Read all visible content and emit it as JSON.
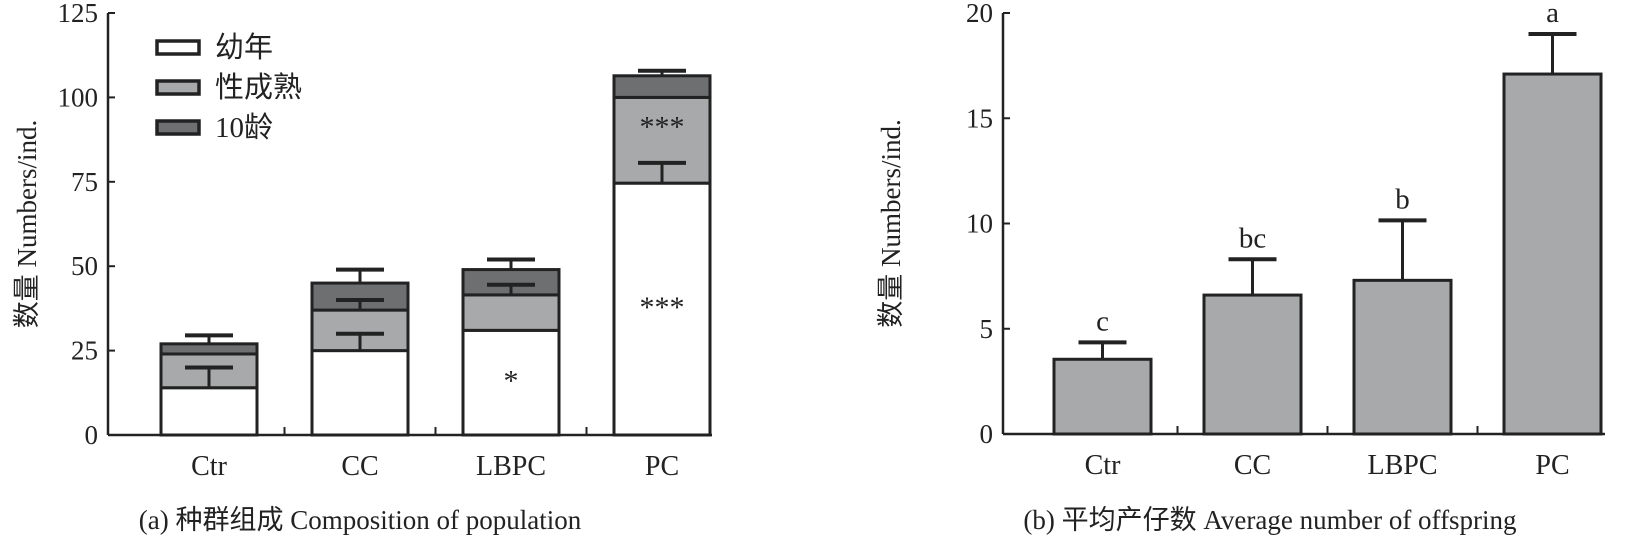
{
  "chart_data": [
    {
      "type": "bar",
      "stacked": true,
      "title": "(a) 种群组成 Composition of population",
      "xlabel": "",
      "ylabel": "数量 Numbers/ind.",
      "ylim": [
        0,
        125
      ],
      "yticks": [
        0,
        25,
        50,
        75,
        100,
        125
      ],
      "categories": [
        "Ctr",
        "CC",
        "LBPC",
        "PC"
      ],
      "legend_position": "top-left",
      "series": [
        {
          "name": "幼年",
          "color": "#ffffff",
          "values": [
            14,
            25,
            31,
            74.6
          ],
          "errors": [
            6,
            5,
            0,
            6
          ]
        },
        {
          "name": "性成熟",
          "color": "#a7a9ab",
          "values": [
            10,
            12,
            10.5,
            25.4
          ],
          "errors": [
            0,
            3,
            3,
            0
          ]
        },
        {
          "name": "10龄",
          "color": "#6d6f71",
          "values": [
            3,
            8,
            7.5,
            6.4
          ],
          "errors": [
            2.5,
            4,
            3,
            1.5
          ]
        }
      ],
      "annotations": [
        {
          "category": "LBPC",
          "series": "幼年",
          "text": "*"
        },
        {
          "category": "PC",
          "series": "幼年",
          "text": "***"
        },
        {
          "category": "PC",
          "series": "性成熟",
          "text": "***"
        }
      ]
    },
    {
      "type": "bar",
      "title": "(b) 平均产仔数 Average number of offspring",
      "xlabel": "",
      "ylabel": "数量 Numbers/ind.",
      "ylim": [
        0,
        20
      ],
      "yticks": [
        0,
        5,
        10,
        15,
        20
      ],
      "categories": [
        "Ctr",
        "CC",
        "LBPC",
        "PC"
      ],
      "color": "#a7a9ab",
      "values": [
        3.55,
        6.6,
        7.3,
        17.1
      ],
      "errors": [
        0.8,
        1.7,
        2.85,
        1.9
      ],
      "labels": [
        "c",
        "bc",
        "b",
        "a"
      ]
    }
  ]
}
